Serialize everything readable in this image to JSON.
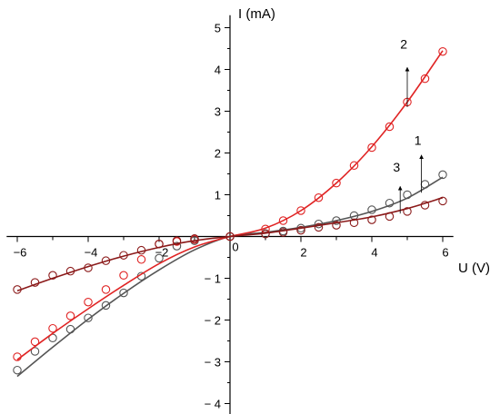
{
  "chart_data": {
    "type": "scatter",
    "xlabel": "U (V)",
    "ylabel": "I (mA)",
    "xlim": [
      -6.3,
      6.3
    ],
    "ylim": [
      -4.3,
      5.3
    ],
    "x_ticks": [
      -6,
      -5,
      -4,
      -3,
      -2,
      -1,
      0,
      1,
      2,
      3,
      4,
      5,
      6
    ],
    "x_tick_labels": [
      "−6",
      "",
      "−4",
      "",
      "−2",
      "",
      "0",
      "",
      "2",
      "",
      "4",
      "",
      "6"
    ],
    "y_ticks": [
      -4,
      -3,
      -2,
      -1,
      0,
      1,
      2,
      3,
      4,
      5
    ],
    "y_tick_labels": [
      "− 4",
      "− 3",
      "− 2",
      "− 1",
      "0",
      "1",
      "2",
      "3",
      "4",
      "5"
    ],
    "grid": false,
    "legend": "none",
    "series": [
      {
        "name": "1",
        "color": "#555555",
        "points": [
          [
            -6,
            -3.2
          ],
          [
            -5.5,
            -2.75
          ],
          [
            -5,
            -2.43
          ],
          [
            -4.5,
            -2.22
          ],
          [
            -4,
            -1.95
          ],
          [
            -3.5,
            -1.65
          ],
          [
            -3,
            -1.35
          ],
          [
            -2.5,
            -0.95
          ],
          [
            -2,
            -0.52
          ],
          [
            -1.5,
            -0.23
          ],
          [
            -1,
            -0.1
          ],
          [
            0,
            0
          ],
          [
            1,
            0.07
          ],
          [
            1.5,
            0.13
          ],
          [
            2,
            0.2
          ],
          [
            2.5,
            0.3
          ],
          [
            3,
            0.38
          ],
          [
            3.5,
            0.5
          ],
          [
            4,
            0.64
          ],
          [
            4.5,
            0.8
          ],
          [
            5,
            1.0
          ],
          [
            5.5,
            1.25
          ],
          [
            6,
            1.48
          ]
        ],
        "fit": [
          [
            -6,
            -3.35
          ],
          [
            -5,
            -2.65
          ],
          [
            -4,
            -1.98
          ],
          [
            -3,
            -1.36
          ],
          [
            -2,
            -0.8
          ],
          [
            -1,
            -0.32
          ],
          [
            0,
            0
          ],
          [
            1,
            0.1
          ],
          [
            2,
            0.22
          ],
          [
            3,
            0.38
          ],
          [
            4,
            0.6
          ],
          [
            5,
            0.92
          ],
          [
            6,
            1.42
          ]
        ]
      },
      {
        "name": "2",
        "color": "#e02424",
        "points": [
          [
            -6,
            -2.88
          ],
          [
            -5.5,
            -2.52
          ],
          [
            -5,
            -2.2
          ],
          [
            -4.5,
            -1.9
          ],
          [
            -4,
            -1.57
          ],
          [
            -3.5,
            -1.27
          ],
          [
            -3,
            -0.93
          ],
          [
            -2.5,
            -0.55
          ],
          [
            -2,
            -0.18
          ],
          [
            -1.5,
            -0.12
          ],
          [
            -1,
            -0.07
          ],
          [
            0,
            0
          ],
          [
            1,
            0.18
          ],
          [
            1.5,
            0.38
          ],
          [
            2,
            0.62
          ],
          [
            2.5,
            0.93
          ],
          [
            3,
            1.28
          ],
          [
            3.5,
            1.7
          ],
          [
            4,
            2.13
          ],
          [
            4.5,
            2.63
          ],
          [
            5,
            3.22
          ],
          [
            5.5,
            3.78
          ],
          [
            6,
            4.43
          ]
        ],
        "fit": [
          [
            -6,
            -2.95
          ],
          [
            -5,
            -2.32
          ],
          [
            -4,
            -1.73
          ],
          [
            -3,
            -1.17
          ],
          [
            -2,
            -0.65
          ],
          [
            -1,
            -0.25
          ],
          [
            0,
            0
          ],
          [
            1,
            0.2
          ],
          [
            2,
            0.62
          ],
          [
            3,
            1.28
          ],
          [
            4,
            2.15
          ],
          [
            5,
            3.22
          ],
          [
            6,
            4.45
          ]
        ]
      },
      {
        "name": "3",
        "color": "#8b1a1a",
        "points": [
          [
            -6,
            -1.27
          ],
          [
            -5.5,
            -1.1
          ],
          [
            -5,
            -0.93
          ],
          [
            -4.5,
            -0.83
          ],
          [
            -4,
            -0.75
          ],
          [
            -3.5,
            -0.58
          ],
          [
            -3,
            -0.45
          ],
          [
            -2.5,
            -0.33
          ],
          [
            -2,
            -0.18
          ],
          [
            -1.5,
            -0.1
          ],
          [
            -1,
            -0.05
          ],
          [
            0,
            0
          ],
          [
            1,
            0.06
          ],
          [
            1.5,
            0.1
          ],
          [
            2,
            0.15
          ],
          [
            2.5,
            0.22
          ],
          [
            3,
            0.27
          ],
          [
            3.5,
            0.33
          ],
          [
            4,
            0.4
          ],
          [
            4.5,
            0.48
          ],
          [
            5,
            0.6
          ],
          [
            5.5,
            0.75
          ],
          [
            6,
            0.85
          ]
        ],
        "fit": [
          [
            -6,
            -1.3
          ],
          [
            -5,
            -1.0
          ],
          [
            -4,
            -0.72
          ],
          [
            -3,
            -0.47
          ],
          [
            -2,
            -0.26
          ],
          [
            -1,
            -0.1
          ],
          [
            0,
            0
          ],
          [
            1,
            0.08
          ],
          [
            2,
            0.2
          ],
          [
            3,
            0.33
          ],
          [
            4,
            0.47
          ],
          [
            5,
            0.67
          ],
          [
            6,
            0.93
          ]
        ]
      }
    ],
    "annotations": [
      {
        "text": "2",
        "at": [
          4.9,
          4.5
        ],
        "arrow_from": [
          5.0,
          3.1
        ],
        "arrow_to": [
          5.0,
          4.05
        ]
      },
      {
        "text": "1",
        "at": [
          5.3,
          2.2
        ],
        "arrow_from": [
          5.4,
          1.05
        ],
        "arrow_to": [
          5.4,
          1.95
        ]
      },
      {
        "text": "3",
        "at": [
          4.7,
          1.55
        ],
        "arrow_from": [
          4.8,
          0.55
        ],
        "arrow_to": [
          4.8,
          1.2
        ]
      }
    ]
  }
}
